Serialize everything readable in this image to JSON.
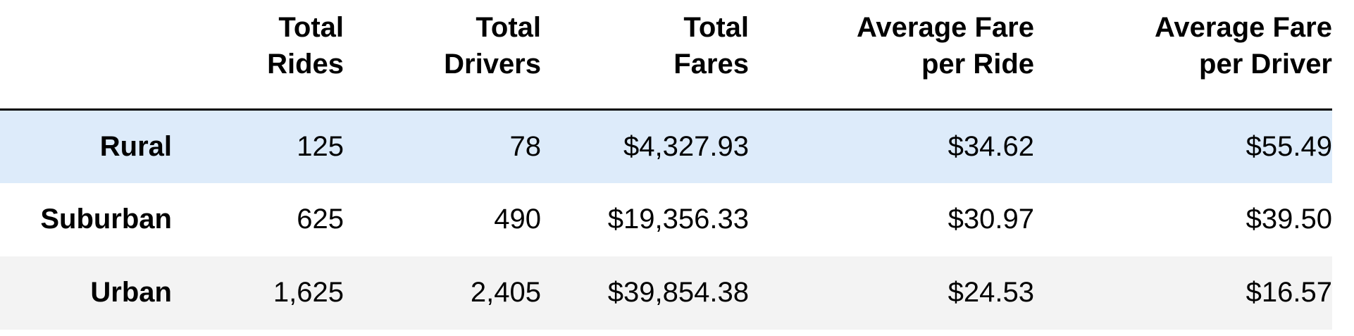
{
  "table": {
    "columns": [
      {
        "line1": "Total",
        "line2": "Rides"
      },
      {
        "line1": "Total",
        "line2": "Drivers"
      },
      {
        "line1": "Total",
        "line2": "Fares"
      },
      {
        "line1": "Average Fare",
        "line2": "per Ride"
      },
      {
        "line1": "Average Fare",
        "line2": "per Driver"
      }
    ],
    "rows": [
      {
        "label": "Rural",
        "values": [
          "125",
          "78",
          "$4,327.93",
          "$34.62",
          "$55.49"
        ]
      },
      {
        "label": "Suburban",
        "values": [
          "625",
          "490",
          "$19,356.33",
          "$30.97",
          "$39.50"
        ]
      },
      {
        "label": "Urban",
        "values": [
          "1,625",
          "2,405",
          "$39,854.38",
          "$24.53",
          "$16.57"
        ]
      }
    ],
    "colors": {
      "highlight_row": "#ddebfa",
      "alt_row": "#f3f3f3",
      "rule": "#000000"
    }
  }
}
